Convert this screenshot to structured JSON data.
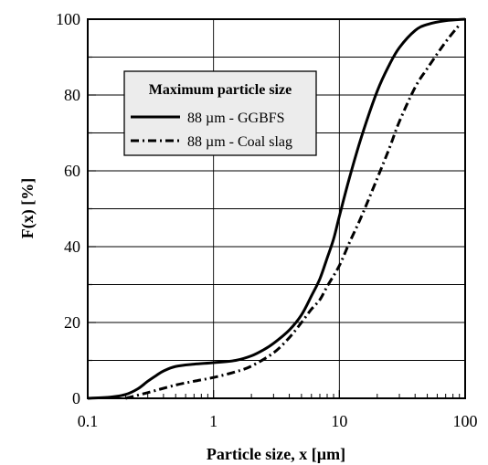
{
  "chart_data": {
    "type": "line",
    "title": "",
    "xlabel": "Particle size, x [µm]",
    "ylabel": "F(x) [%]",
    "x_scale": "log",
    "xlim": [
      0.1,
      100
    ],
    "ylim": [
      0,
      100
    ],
    "x_ticks": [
      0.1,
      1,
      10,
      100
    ],
    "x_tick_labels": [
      "0.1",
      "1",
      "10",
      "100"
    ],
    "y_ticks": [
      0,
      20,
      40,
      60,
      80,
      100
    ],
    "y_tick_labels": [
      "0",
      "20",
      "40",
      "60",
      "80",
      "100"
    ],
    "grid": true,
    "legend": {
      "title": "Maximum particle size",
      "placement": "upper-left"
    },
    "series": [
      {
        "name": "88 µm - GGBFS",
        "style": "solid",
        "color": "#000000",
        "points": [
          [
            0.1,
            0
          ],
          [
            0.15,
            0.3
          ],
          [
            0.2,
            1
          ],
          [
            0.25,
            2.5
          ],
          [
            0.3,
            4.5
          ],
          [
            0.35,
            6
          ],
          [
            0.4,
            7.2
          ],
          [
            0.5,
            8.4
          ],
          [
            0.7,
            9
          ],
          [
            1,
            9.4
          ],
          [
            1.5,
            10
          ],
          [
            2,
            11.2
          ],
          [
            2.5,
            12.8
          ],
          [
            3,
            14.5
          ],
          [
            4,
            18
          ],
          [
            5,
            22
          ],
          [
            6,
            27
          ],
          [
            7,
            31.5
          ],
          [
            8,
            37
          ],
          [
            9,
            42
          ],
          [
            10,
            48
          ],
          [
            12,
            58
          ],
          [
            15,
            69
          ],
          [
            20,
            81
          ],
          [
            25,
            88
          ],
          [
            30,
            92.5
          ],
          [
            40,
            97
          ],
          [
            50,
            98.6
          ],
          [
            70,
            99.6
          ],
          [
            100,
            100
          ]
        ]
      },
      {
        "name": "88 µm - Coal slag",
        "style": "dash-dot",
        "color": "#000000",
        "points": [
          [
            0.2,
            0
          ],
          [
            0.3,
            1.5
          ],
          [
            0.5,
            3.5
          ],
          [
            0.7,
            4.5
          ],
          [
            1,
            5.5
          ],
          [
            1.5,
            7
          ],
          [
            2,
            8.5
          ],
          [
            3,
            12
          ],
          [
            4,
            16
          ],
          [
            5,
            20
          ],
          [
            6,
            23.5
          ],
          [
            7,
            26
          ],
          [
            8,
            29.5
          ],
          [
            10,
            35
          ],
          [
            12,
            41
          ],
          [
            15,
            48
          ],
          [
            20,
            58
          ],
          [
            25,
            66
          ],
          [
            30,
            73
          ],
          [
            40,
            82
          ],
          [
            50,
            87
          ],
          [
            70,
            94
          ],
          [
            90,
            98.5
          ]
        ]
      }
    ]
  }
}
